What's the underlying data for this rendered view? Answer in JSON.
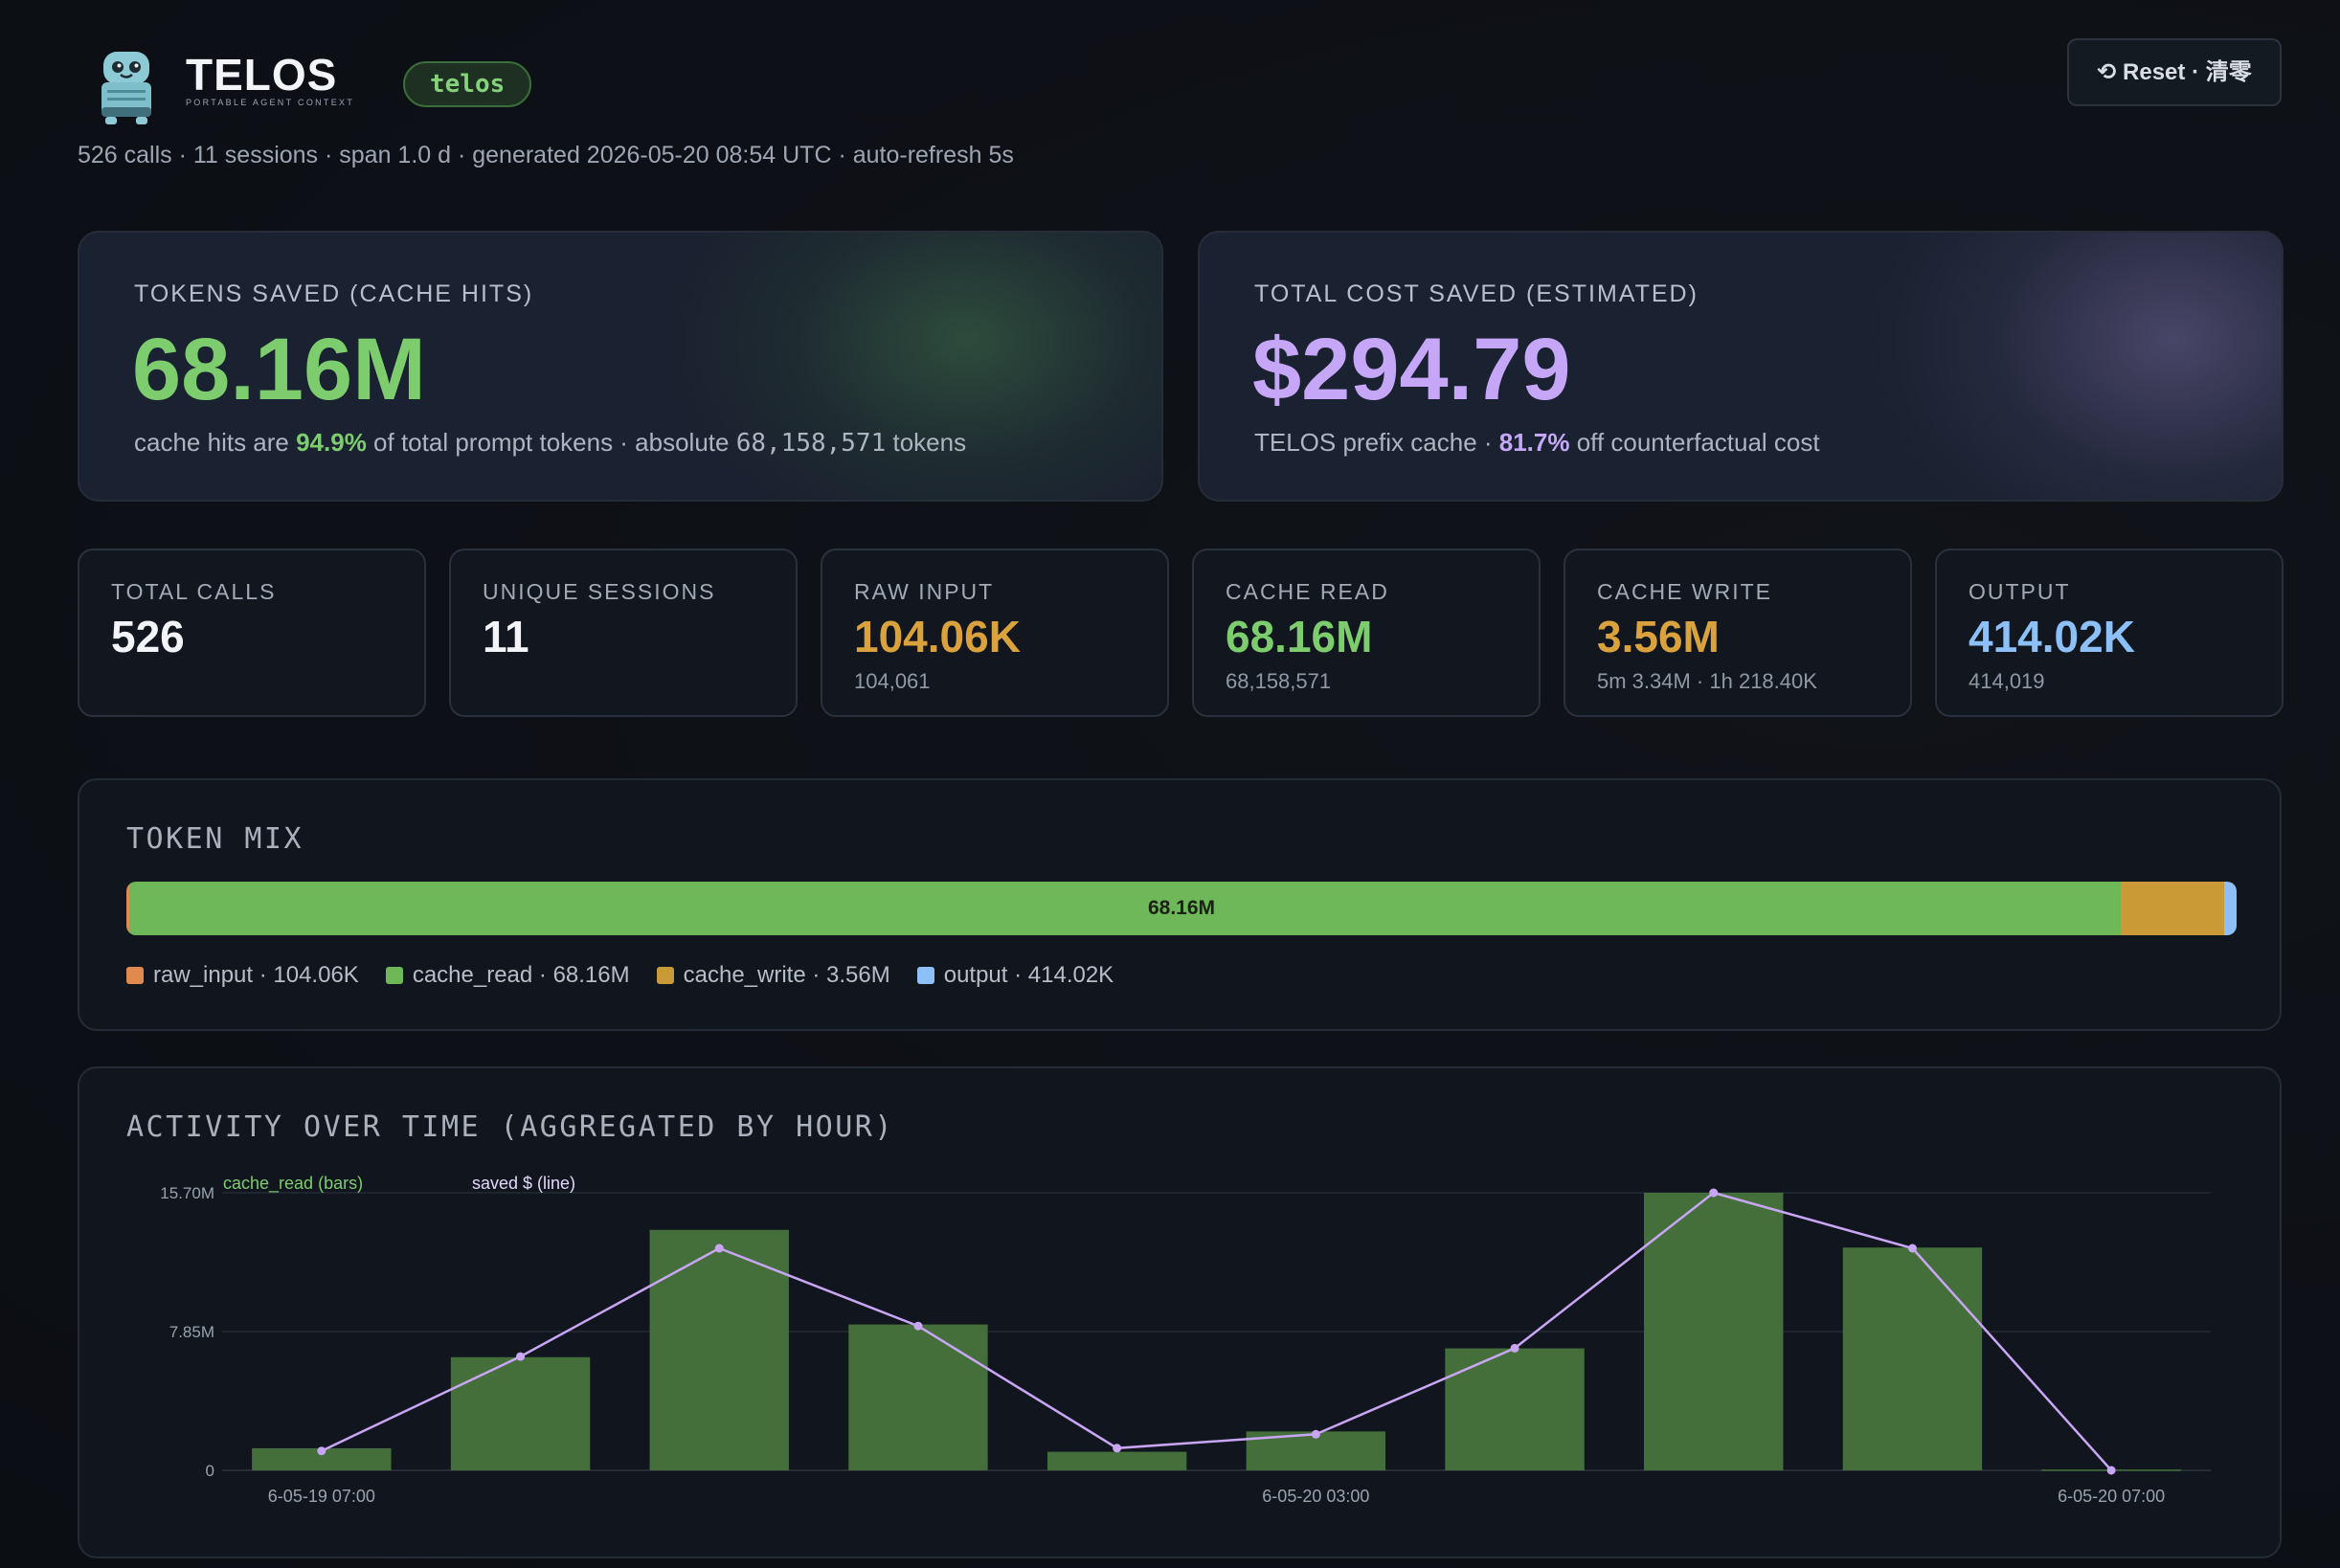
{
  "header": {
    "brand": "TELOS",
    "brand_tagline": "PORTABLE AGENT CONTEXT",
    "pill": "telos",
    "reset_label": "⟲ Reset · 清零",
    "meta": "526 calls · 11 sessions · span 1.0 d · generated 2026-05-20 08:54 UTC · auto-refresh 5s"
  },
  "hero": {
    "tokens": {
      "label": "TOKENS SAVED (CACHE HITS)",
      "value": "68.16M",
      "sub_prefix": "cache hits are ",
      "sub_highlight": "94.9%",
      "sub_middle": " of total prompt tokens · absolute ",
      "sub_number": "68,158,571",
      "sub_suffix": " tokens"
    },
    "cost": {
      "label": "TOTAL COST SAVED (ESTIMATED)",
      "value": "$294.79",
      "sub_prefix": "TELOS prefix cache · ",
      "sub_highlight": "81.7%",
      "sub_suffix": " off counterfactual cost"
    }
  },
  "stats": [
    {
      "label": "TOTAL CALLS",
      "value": "526",
      "sub": "",
      "color": "#f2f4f8"
    },
    {
      "label": "UNIQUE SESSIONS",
      "value": "11",
      "sub": "",
      "color": "#f2f4f8"
    },
    {
      "label": "RAW INPUT",
      "value": "104.06K",
      "sub": "104,061",
      "color": "#d9a23d"
    },
    {
      "label": "CACHE READ",
      "value": "68.16M",
      "sub": "68,158,571",
      "color": "#7dcd6e"
    },
    {
      "label": "CACHE WRITE",
      "value": "3.56M",
      "sub": "5m 3.34M · 1h 218.40K",
      "color": "#d9a23d"
    },
    {
      "label": "OUTPUT",
      "value": "414.02K",
      "sub": "414,019",
      "color": "#8cc0f7"
    }
  ],
  "token_mix": {
    "title": "TOKEN MIX",
    "bar_label": "68.16M",
    "segments": [
      {
        "key": "raw_input",
        "label": "raw_input · 104.06K",
        "value": 104061,
        "color": "#e08a4f"
      },
      {
        "key": "cache_read",
        "label": "cache_read · 68.16M",
        "value": 68158571,
        "color": "#6fb85a"
      },
      {
        "key": "cache_write",
        "label": "cache_write · 3.56M",
        "value": 3560000,
        "color": "#c99a35"
      },
      {
        "key": "output",
        "label": "output · 414.02K",
        "value": 414019,
        "color": "#8cc0f7"
      }
    ]
  },
  "activity": {
    "title": "ACTIVITY OVER TIME (AGGREGATED BY HOUR)",
    "legend_bars": "cache_read (bars)",
    "legend_line": "saved $ (line)",
    "bar_color": "#446f3b",
    "line_color": "#c9a6f5"
  },
  "chart_data": {
    "type": "bar",
    "title": "ACTIVITY OVER TIME (AGGREGATED BY HOUR)",
    "y_ticks": [
      "15.70M",
      "7.85M",
      "0"
    ],
    "ylim": [
      0,
      15700000
    ],
    "x_tick_labels": [
      {
        "index": 0,
        "label": "6-05-19 07:00"
      },
      {
        "index": 5,
        "label": "6-05-20 03:00"
      },
      {
        "index": 9,
        "label": "6-05-20 07:00"
      }
    ],
    "categories": [
      "0",
      "1",
      "2",
      "3",
      "4",
      "5",
      "6",
      "7",
      "8",
      "9"
    ],
    "series": [
      {
        "name": "cache_read (bars)",
        "type": "bar",
        "values": [
          1250000,
          6400000,
          13600000,
          8250000,
          1050000,
          2200000,
          6900000,
          15700000,
          12600000,
          50000
        ]
      },
      {
        "name": "saved $ (line)",
        "type": "line",
        "values_fraction_of_max": [
          0.07,
          0.41,
          0.8,
          0.52,
          0.08,
          0.13,
          0.44,
          1.0,
          0.8,
          0.0
        ]
      }
    ],
    "grid": true
  }
}
